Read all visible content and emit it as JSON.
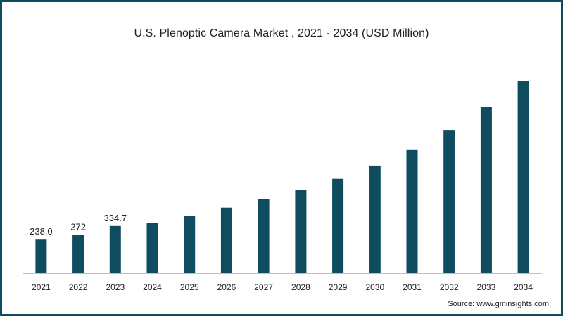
{
  "chart_data": {
    "type": "bar",
    "title": "U.S. Plenoptic Camera Market , 2021 - 2034 (USD Million)",
    "categories": [
      "2021",
      "2022",
      "2023",
      "2024",
      "2025",
      "2026",
      "2027",
      "2028",
      "2029",
      "2030",
      "2031",
      "2032",
      "2033",
      "2034"
    ],
    "values": [
      238.0,
      272,
      334.7,
      356,
      405,
      465,
      525,
      590,
      669,
      763,
      878,
      1016,
      1179,
      1361
    ],
    "data_labels": [
      "238.0",
      "272",
      "334.7",
      null,
      null,
      null,
      null,
      null,
      null,
      null,
      null,
      null,
      null,
      null
    ],
    "ylim": [
      0,
      1450
    ],
    "grid": false,
    "legend": "none",
    "bar_color": "#0f4c5f",
    "source": "Source: www.gminsights.com"
  }
}
